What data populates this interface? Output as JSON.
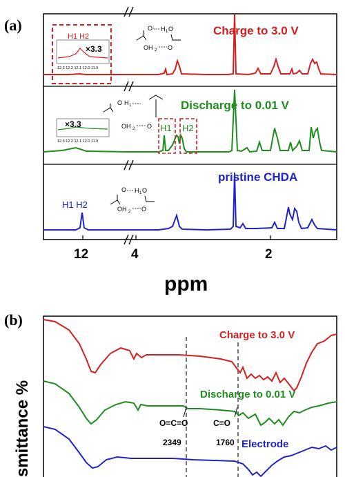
{
  "panel_a": {
    "label": "(a)",
    "axis_title": "ppm",
    "ticks": [
      "12",
      "4",
      "2"
    ],
    "spectra": [
      {
        "name": "Charge to 3.0 V",
        "color": "#d42020"
      },
      {
        "name": "Discharge to 0.01 V",
        "color": "#1e8c1e"
      },
      {
        "name": "pristine CHDA",
        "color": "#1f24c8"
      }
    ],
    "top_inset": {
      "peaks": "H1 H2",
      "scale": "×3.3",
      "ticks": "12.3 12.2 12.1 12.0 11.9"
    },
    "mid_inset": {
      "scale": "×3.3",
      "ticks": "12.3 12.2 12.1 12.0 11.9"
    },
    "mid_peak_labels": [
      "H1",
      "H2"
    ],
    "bottom_peaks": "H1 H2",
    "molecule_top": {
      "o1": "O",
      "h1": "H",
      "sub1": "1",
      "o2": "O",
      "oh2": "OH",
      "sub2": "2",
      "o3": "O"
    },
    "molecule_mid": {
      "o1": "O",
      "h1": "H",
      "sub1": "1",
      "oh2": "OH",
      "sub2": "2",
      "o3": "O"
    },
    "molecule_bot": {
      "o1": "O",
      "h1": "H",
      "sub1": "1",
      "o2": "O",
      "oh2": "OH",
      "sub2": "2",
      "o3": "O"
    }
  },
  "panel_b": {
    "label": "(b)",
    "ylabel": "smittance %",
    "curves": [
      {
        "name": "Charge to 3.0 V",
        "color": "#d42020"
      },
      {
        "name": "Discharge to 0.01 V",
        "color": "#1e8c1e"
      },
      {
        "name": "Electrode",
        "color": "#1f24c8"
      }
    ],
    "annot_1": {
      "label": "O=C=O",
      "value": "2349"
    },
    "annot_2": {
      "label": "C=O",
      "value": "1760"
    }
  }
}
